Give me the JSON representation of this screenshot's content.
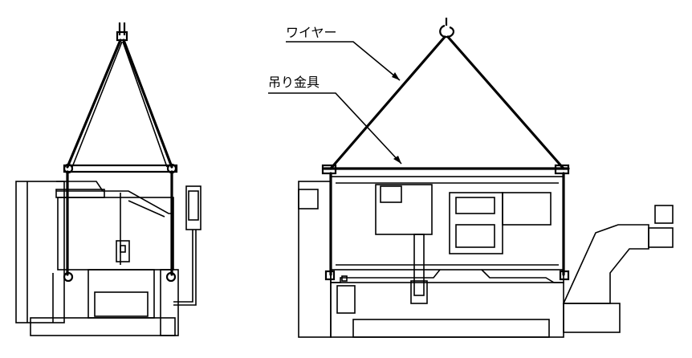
{
  "labels": {
    "wire": "ワイヤー",
    "lifting_bracket": "吊り金具"
  },
  "colors": {
    "line": "#000000",
    "background": "#ffffff"
  }
}
